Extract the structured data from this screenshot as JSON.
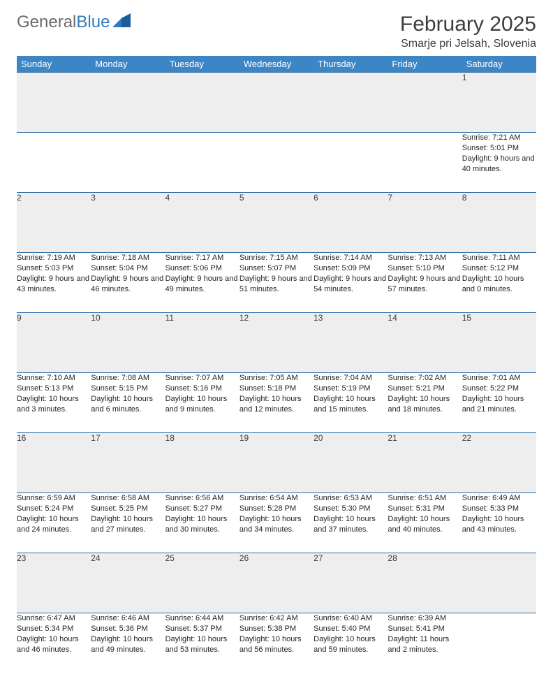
{
  "brand": {
    "part1": "General",
    "part2": "Blue"
  },
  "title": "February 2025",
  "location": "Smarje pri Jelsah, Slovenia",
  "colors": {
    "header_bg": "#3d86c6",
    "header_text": "#ffffff",
    "rule": "#2d6da8",
    "daynum_bg": "#eeeeee",
    "text": "#252525",
    "brand_grey": "#6b6b6b",
    "brand_blue": "#2f7bbf",
    "page_bg": "#ffffff"
  },
  "weekday_labels": [
    "Sunday",
    "Monday",
    "Tuesday",
    "Wednesday",
    "Thursday",
    "Friday",
    "Saturday"
  ],
  "weeks": [
    [
      null,
      null,
      null,
      null,
      null,
      null,
      {
        "n": "1",
        "sr": "7:21 AM",
        "ss": "5:01 PM",
        "dl": "9 hours and 40 minutes."
      }
    ],
    [
      {
        "n": "2",
        "sr": "7:19 AM",
        "ss": "5:03 PM",
        "dl": "9 hours and 43 minutes."
      },
      {
        "n": "3",
        "sr": "7:18 AM",
        "ss": "5:04 PM",
        "dl": "9 hours and 46 minutes."
      },
      {
        "n": "4",
        "sr": "7:17 AM",
        "ss": "5:06 PM",
        "dl": "9 hours and 49 minutes."
      },
      {
        "n": "5",
        "sr": "7:15 AM",
        "ss": "5:07 PM",
        "dl": "9 hours and 51 minutes."
      },
      {
        "n": "6",
        "sr": "7:14 AM",
        "ss": "5:09 PM",
        "dl": "9 hours and 54 minutes."
      },
      {
        "n": "7",
        "sr": "7:13 AM",
        "ss": "5:10 PM",
        "dl": "9 hours and 57 minutes."
      },
      {
        "n": "8",
        "sr": "7:11 AM",
        "ss": "5:12 PM",
        "dl": "10 hours and 0 minutes."
      }
    ],
    [
      {
        "n": "9",
        "sr": "7:10 AM",
        "ss": "5:13 PM",
        "dl": "10 hours and 3 minutes."
      },
      {
        "n": "10",
        "sr": "7:08 AM",
        "ss": "5:15 PM",
        "dl": "10 hours and 6 minutes."
      },
      {
        "n": "11",
        "sr": "7:07 AM",
        "ss": "5:16 PM",
        "dl": "10 hours and 9 minutes."
      },
      {
        "n": "12",
        "sr": "7:05 AM",
        "ss": "5:18 PM",
        "dl": "10 hours and 12 minutes."
      },
      {
        "n": "13",
        "sr": "7:04 AM",
        "ss": "5:19 PM",
        "dl": "10 hours and 15 minutes."
      },
      {
        "n": "14",
        "sr": "7:02 AM",
        "ss": "5:21 PM",
        "dl": "10 hours and 18 minutes."
      },
      {
        "n": "15",
        "sr": "7:01 AM",
        "ss": "5:22 PM",
        "dl": "10 hours and 21 minutes."
      }
    ],
    [
      {
        "n": "16",
        "sr": "6:59 AM",
        "ss": "5:24 PM",
        "dl": "10 hours and 24 minutes."
      },
      {
        "n": "17",
        "sr": "6:58 AM",
        "ss": "5:25 PM",
        "dl": "10 hours and 27 minutes."
      },
      {
        "n": "18",
        "sr": "6:56 AM",
        "ss": "5:27 PM",
        "dl": "10 hours and 30 minutes."
      },
      {
        "n": "19",
        "sr": "6:54 AM",
        "ss": "5:28 PM",
        "dl": "10 hours and 34 minutes."
      },
      {
        "n": "20",
        "sr": "6:53 AM",
        "ss": "5:30 PM",
        "dl": "10 hours and 37 minutes."
      },
      {
        "n": "21",
        "sr": "6:51 AM",
        "ss": "5:31 PM",
        "dl": "10 hours and 40 minutes."
      },
      {
        "n": "22",
        "sr": "6:49 AM",
        "ss": "5:33 PM",
        "dl": "10 hours and 43 minutes."
      }
    ],
    [
      {
        "n": "23",
        "sr": "6:47 AM",
        "ss": "5:34 PM",
        "dl": "10 hours and 46 minutes."
      },
      {
        "n": "24",
        "sr": "6:46 AM",
        "ss": "5:36 PM",
        "dl": "10 hours and 49 minutes."
      },
      {
        "n": "25",
        "sr": "6:44 AM",
        "ss": "5:37 PM",
        "dl": "10 hours and 53 minutes."
      },
      {
        "n": "26",
        "sr": "6:42 AM",
        "ss": "5:38 PM",
        "dl": "10 hours and 56 minutes."
      },
      {
        "n": "27",
        "sr": "6:40 AM",
        "ss": "5:40 PM",
        "dl": "10 hours and 59 minutes."
      },
      {
        "n": "28",
        "sr": "6:39 AM",
        "ss": "5:41 PM",
        "dl": "11 hours and 2 minutes."
      },
      null
    ]
  ],
  "labels": {
    "sunrise": "Sunrise:",
    "sunset": "Sunset:",
    "daylight": "Daylight:"
  }
}
